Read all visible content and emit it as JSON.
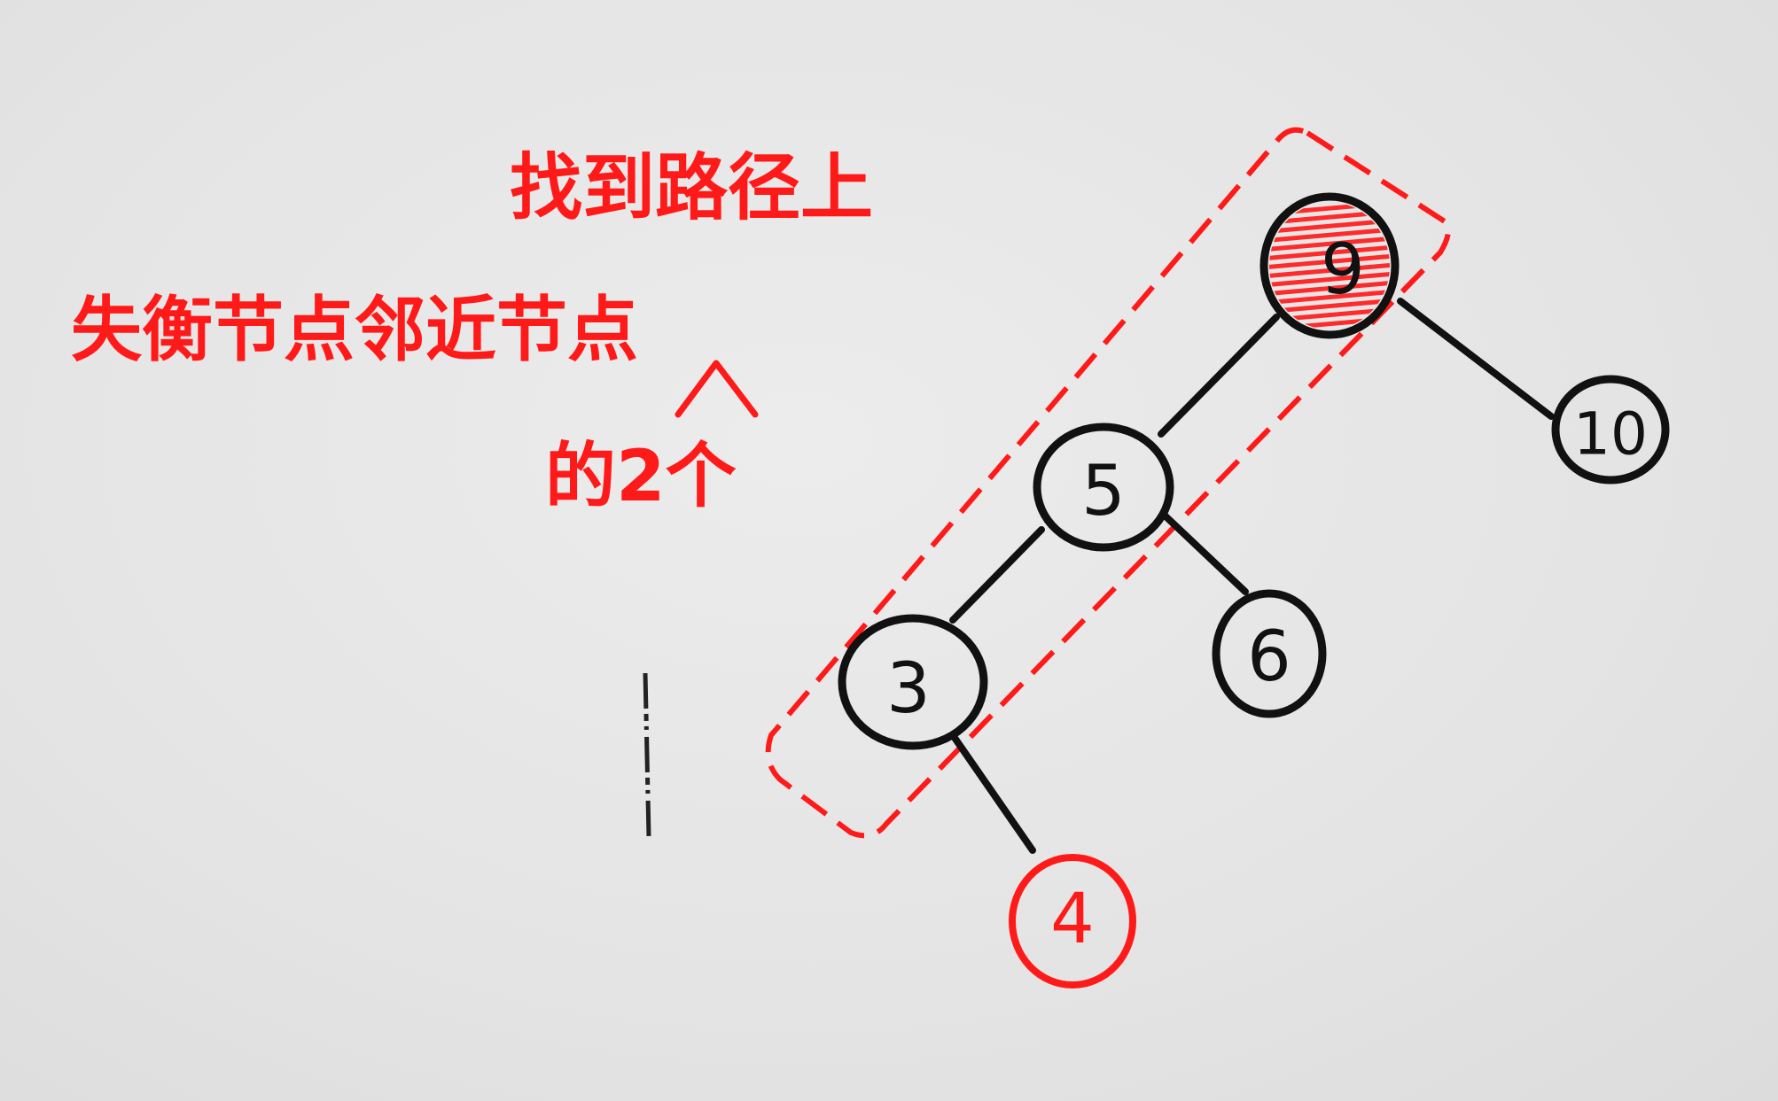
{
  "annotation": {
    "line1": "找到路径上",
    "line2": "失衡节点邻近节点",
    "line3": "的2个"
  },
  "tree": {
    "nodes": [
      {
        "id": "n9",
        "label": "9",
        "color": "#111111",
        "highlight": true
      },
      {
        "id": "n5",
        "label": "5",
        "color": "#111111"
      },
      {
        "id": "n10",
        "label": "10",
        "color": "#111111"
      },
      {
        "id": "n3",
        "label": "3",
        "color": "#111111"
      },
      {
        "id": "n6",
        "label": "6",
        "color": "#111111"
      },
      {
        "id": "n4",
        "label": "4",
        "color": "#ff1a1a"
      }
    ],
    "edges": [
      {
        "from": "9",
        "to": "5"
      },
      {
        "from": "9",
        "to": "10"
      },
      {
        "from": "5",
        "to": "3"
      },
      {
        "from": "5",
        "to": "6"
      },
      {
        "from": "3",
        "to": "4"
      }
    ]
  },
  "colors": {
    "annotation": "#ff1a1a",
    "ink": "#111111",
    "highlight_fill": "#ff3b3b"
  }
}
